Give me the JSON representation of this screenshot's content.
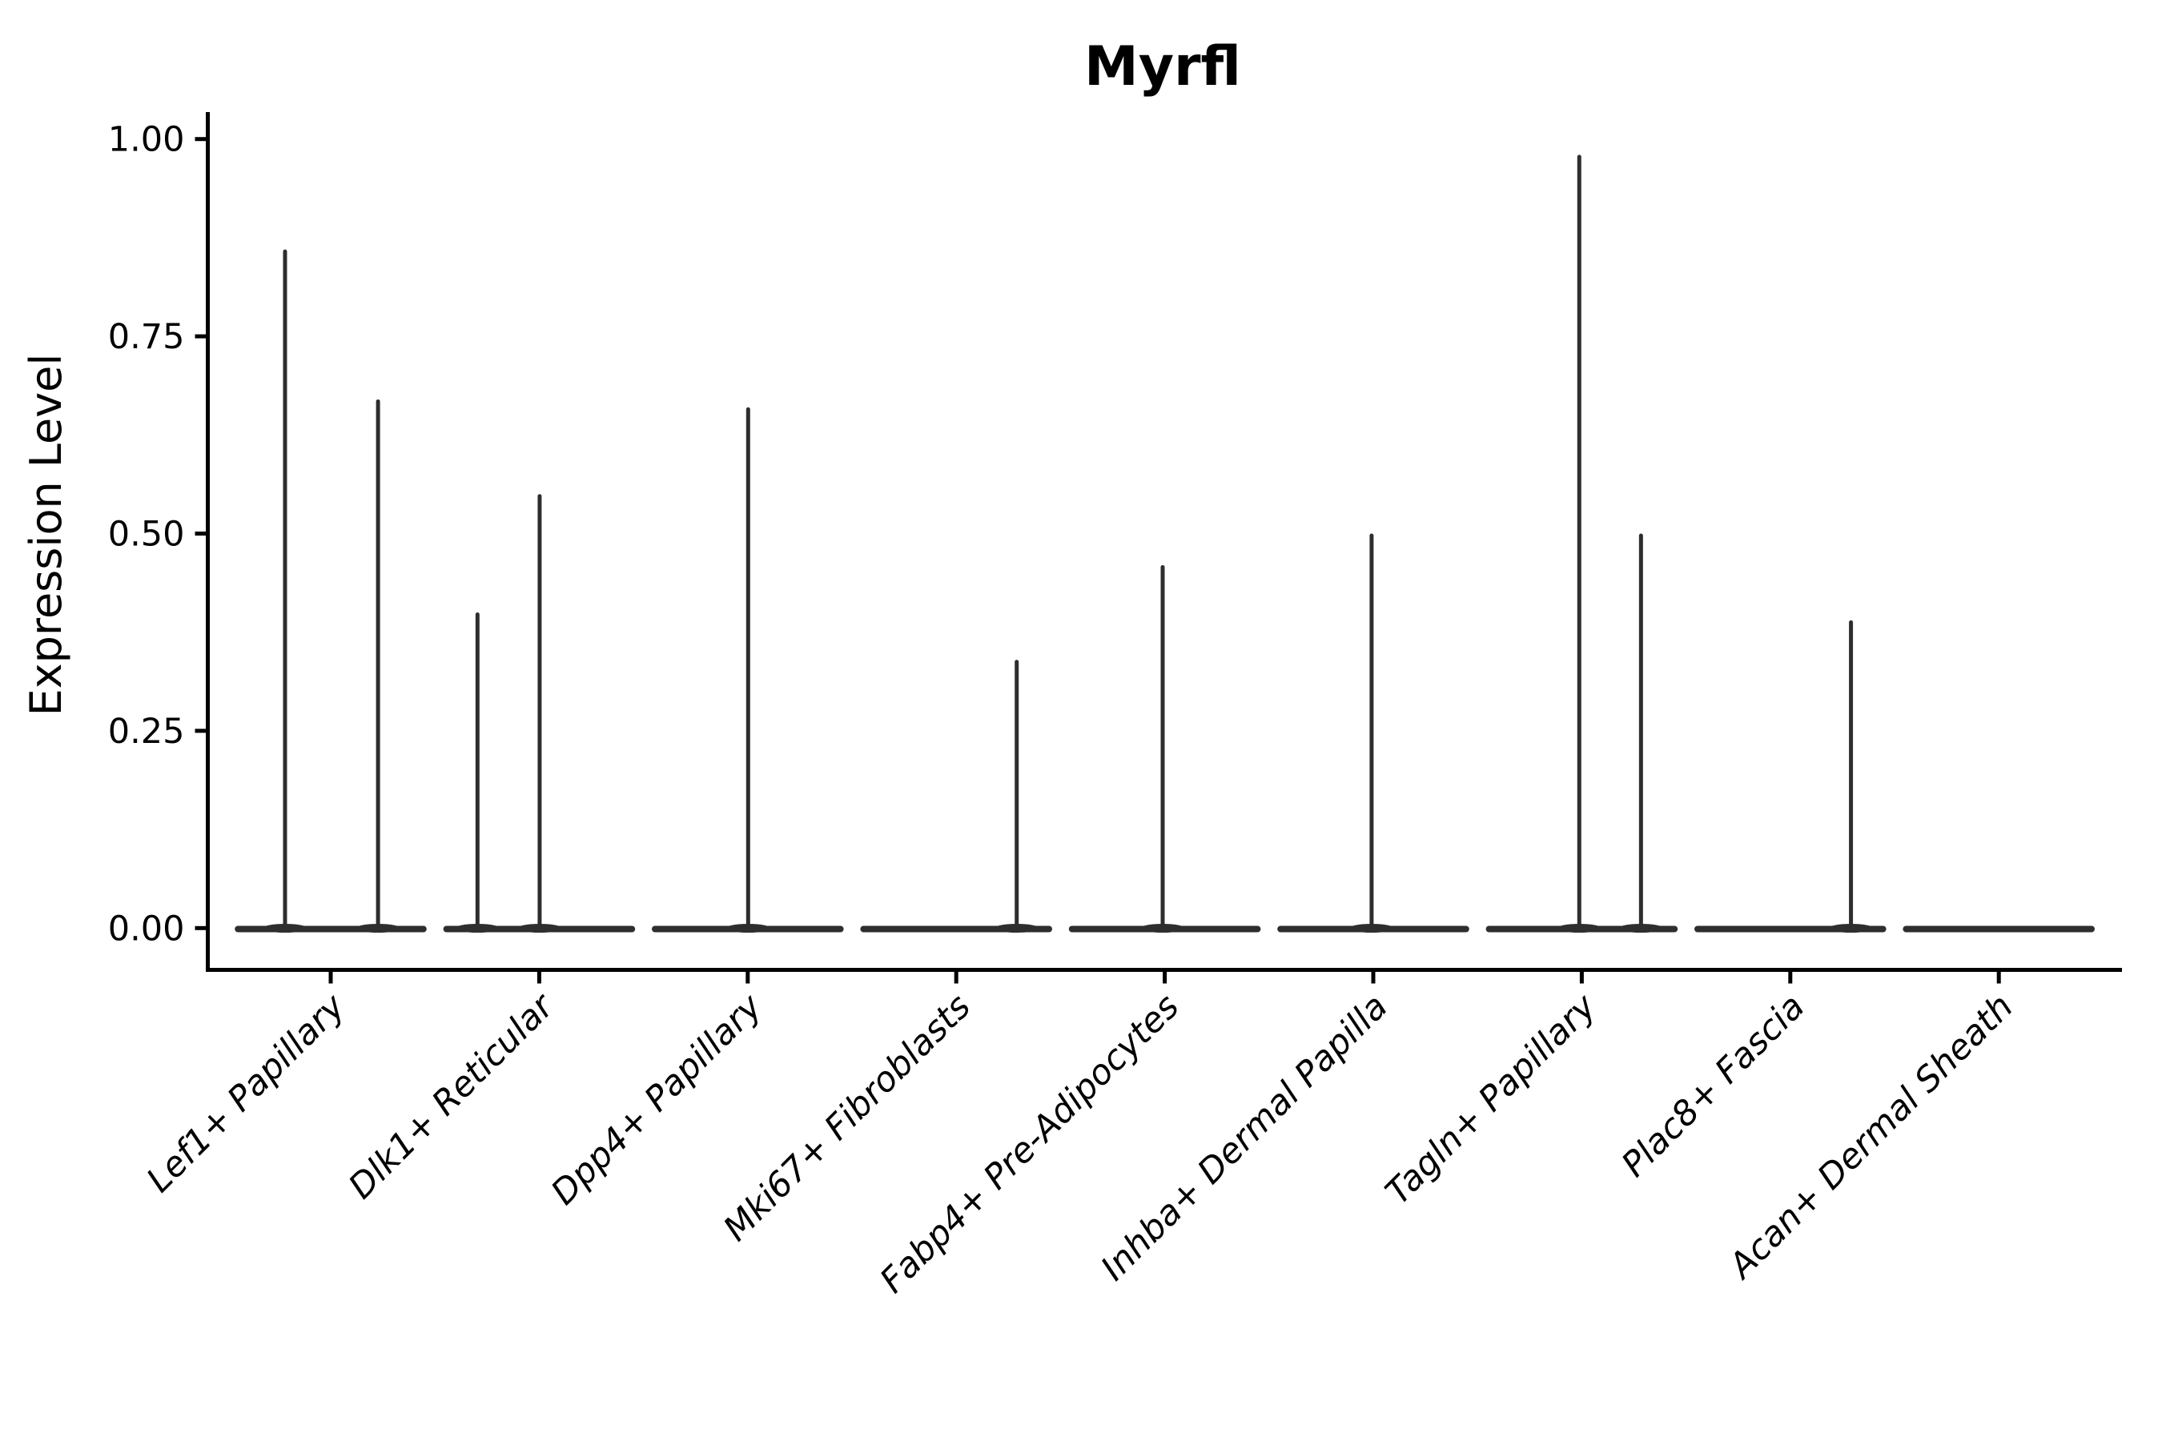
{
  "chart_data": {
    "type": "violin",
    "title": "Myrfl",
    "ylabel": "Expression Level",
    "xlabel": "",
    "ylim": [
      0,
      1.0
    ],
    "yticks": [
      {
        "value": 0.0,
        "label": "0.00"
      },
      {
        "value": 0.25,
        "label": "0.25"
      },
      {
        "value": 0.5,
        "label": "0.50"
      },
      {
        "value": 0.75,
        "label": "0.75"
      },
      {
        "value": 1.0,
        "label": "1.00"
      }
    ],
    "grid": false,
    "legend": "none",
    "categories": [
      "Lef1+ Papillary",
      "Dlk1+ Reticular",
      "Dpp4+ Papillary",
      "Mki67+ Fibroblasts",
      "Fabp4+ Pre-Adipocytes",
      "Inhba+ Dermal Papilla",
      "Tagln+ Papillary",
      "Plac8+ Fascia",
      "Acan+ Dermal Sheath"
    ],
    "violins": [
      {
        "category": "Lef1+ Papillary",
        "spikes": [
          {
            "dx": -0.219,
            "max": 0.86
          },
          {
            "dx": 0.227,
            "max": 0.67
          }
        ]
      },
      {
        "category": "Dlk1+ Reticular",
        "spikes": [
          {
            "dx": -0.296,
            "max": 0.4
          },
          {
            "dx": 0.002,
            "max": 0.55
          }
        ]
      },
      {
        "category": "Dpp4+ Papillary",
        "spikes": [
          {
            "dx": 0.002,
            "max": 0.66
          }
        ]
      },
      {
        "category": "Mki67+ Fibroblasts",
        "spikes": [
          {
            "dx": 0.29,
            "max": 0.34
          }
        ]
      },
      {
        "category": "Fabp4+ Pre-Adipocytes",
        "spikes": [
          {
            "dx": -0.01,
            "max": 0.46
          }
        ]
      },
      {
        "category": "Inhba+ Dermal Papilla",
        "spikes": [
          {
            "dx": -0.008,
            "max": 0.5
          }
        ]
      },
      {
        "category": "Tagln+ Papillary",
        "spikes": [
          {
            "dx": -0.012,
            "max": 0.98
          },
          {
            "dx": 0.284,
            "max": 0.5
          }
        ]
      },
      {
        "category": "Plac8+ Fascia",
        "spikes": [
          {
            "dx": 0.291,
            "max": 0.39
          }
        ]
      },
      {
        "category": "Acan+ Dermal Sheath",
        "spikes": []
      }
    ],
    "base_halfwidth": 0.46,
    "colors": {
      "violin": "#2e2e2e",
      "axis": "#000000",
      "text": "#000000",
      "background": "#ffffff"
    }
  }
}
